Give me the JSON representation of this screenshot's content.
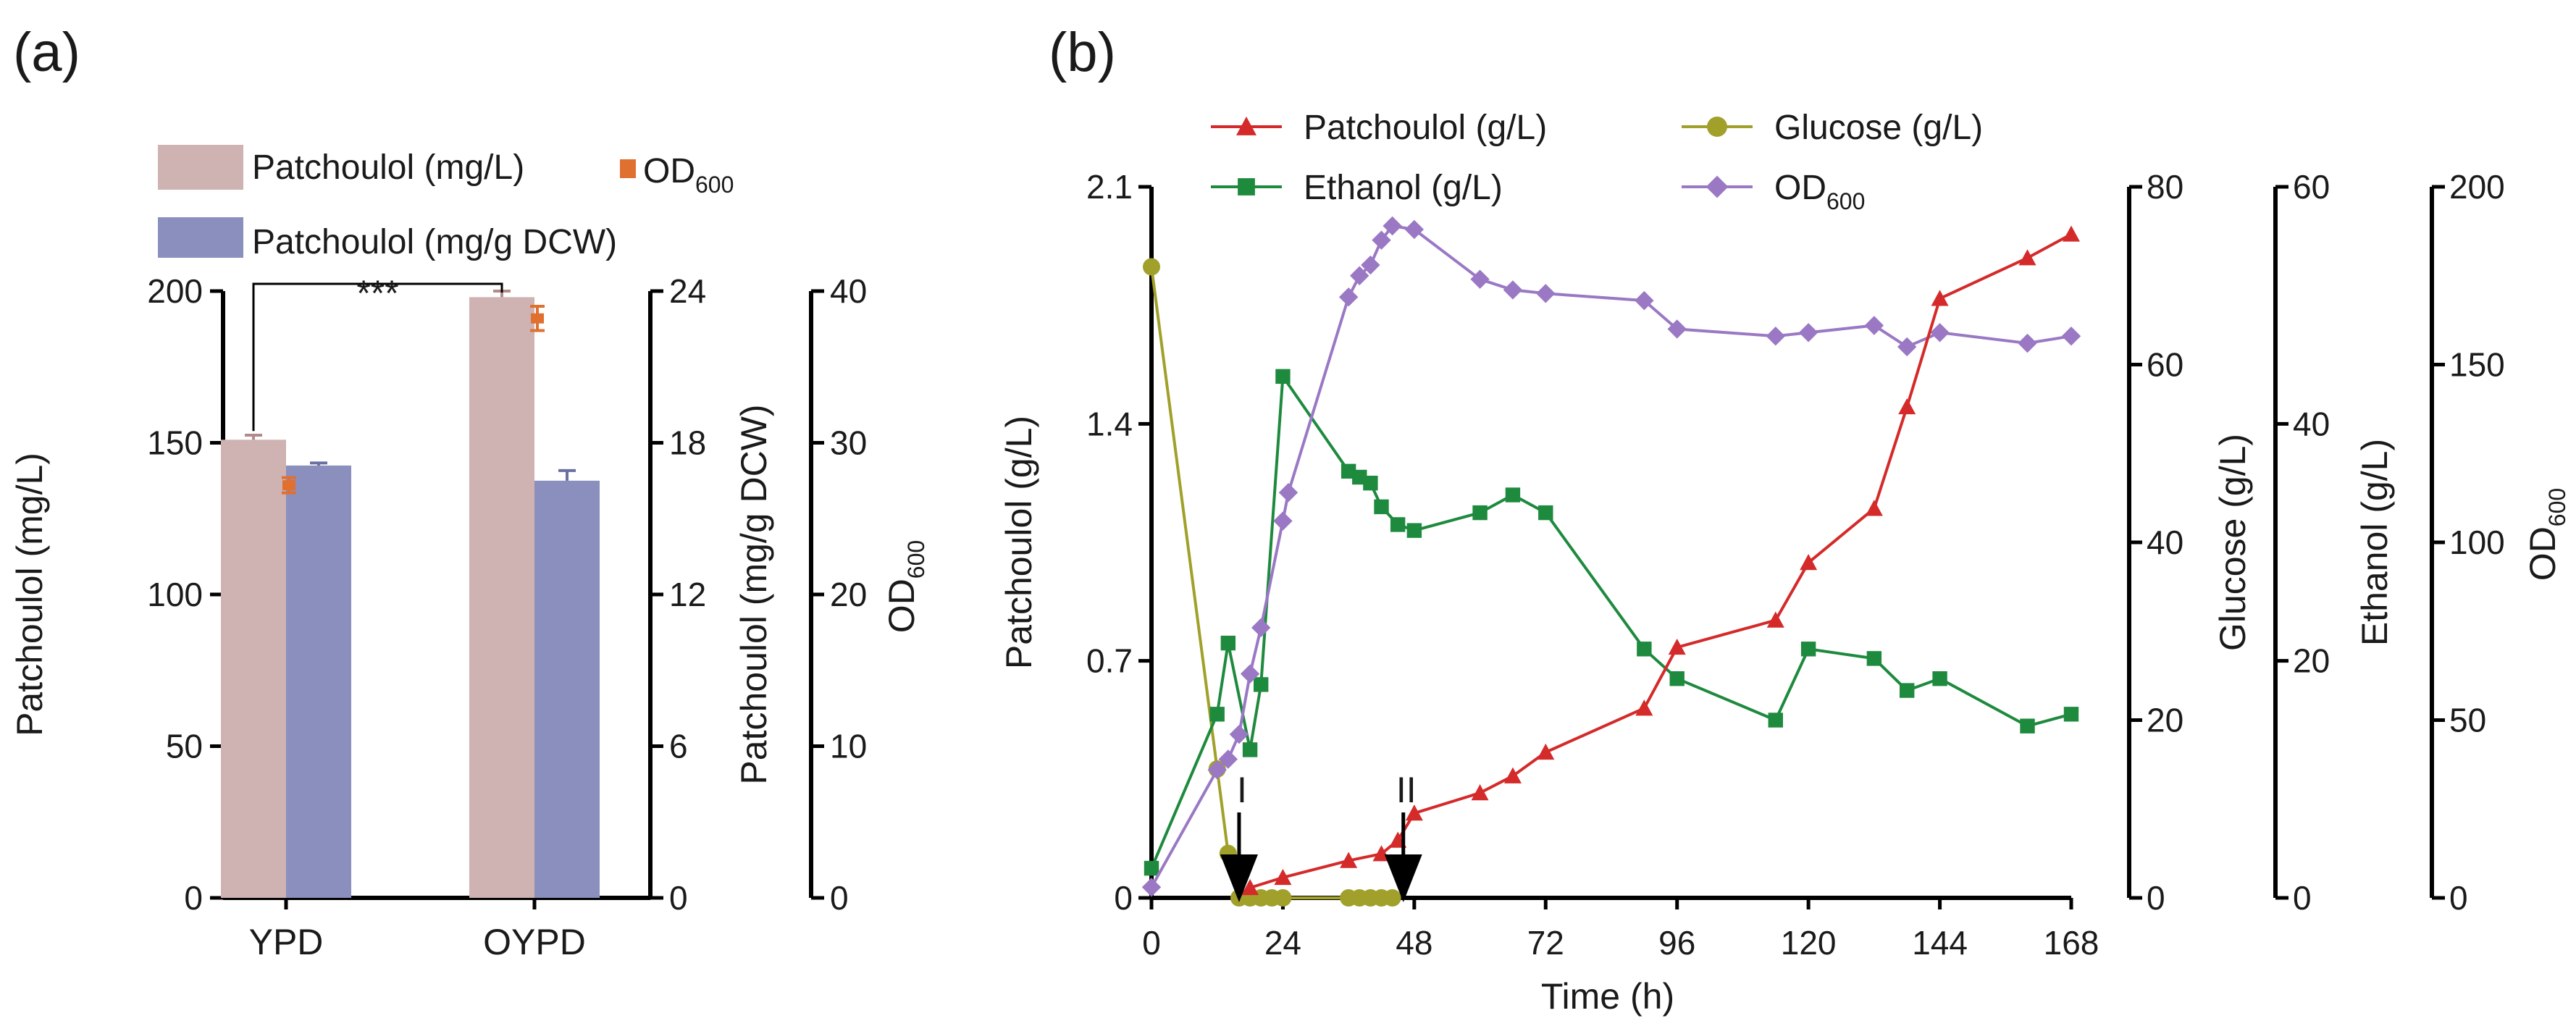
{
  "chart_data": [
    {
      "type": "bar",
      "panel_label": "(a)",
      "categories": [
        "YPD",
        "OYPD"
      ],
      "series": [
        {
          "name": "Patchoulol (mg/L)",
          "axis": "left",
          "color": "#cfb2b2",
          "values": [
            151,
            198
          ],
          "errors": [
            1.5,
            2.0
          ]
        },
        {
          "name": "Patchoulol (mg/g DCW)",
          "axis": "right1",
          "color": "#8a8fbe",
          "values": [
            17.1,
            16.5
          ],
          "errors": [
            0.1,
            0.4
          ]
        },
        {
          "name": "OD600",
          "axis": "right2",
          "color": "#e07030",
          "values": [
            27.2,
            38.2
          ],
          "errors": [
            0.5,
            0.8
          ]
        }
      ],
      "legend": [
        {
          "label": "Patchoulol (mg/L)",
          "sub": "",
          "color": "#cfb2b2"
        },
        {
          "label": "OD",
          "sub": "600",
          "color": "#e07030"
        },
        {
          "label": "Patchoulol (mg/g DCW)",
          "sub": "",
          "color": "#8a8fbe"
        }
      ],
      "significance": "***",
      "axes": {
        "left": {
          "label": "Patchoulol (mg/L)",
          "ylim": [
            0,
            200
          ],
          "ticks": [
            "0",
            "50",
            "100",
            "150",
            "200"
          ]
        },
        "right1": {
          "label": "Patchoulol (mg/g DCW)",
          "ylim": [
            0,
            24
          ],
          "ticks": [
            "0",
            "6",
            "12",
            "18",
            "24"
          ]
        },
        "right2": {
          "label": "OD",
          "label_sub": "600",
          "ylim": [
            0,
            40
          ],
          "ticks": [
            "0",
            "10",
            "20",
            "30",
            "40"
          ]
        }
      }
    },
    {
      "type": "line",
      "panel_label": "(b)",
      "xlabel": "Time (h)",
      "xlim": [
        0,
        168
      ],
      "xticks": [
        "0",
        "24",
        "48",
        "72",
        "96",
        "120",
        "144",
        "168"
      ],
      "series": [
        {
          "name": "Patchoulol (g/L)",
          "axis": "patchoulol",
          "color": "#d42a2a",
          "marker": "triangle",
          "x": [
            18,
            24,
            36,
            42,
            45,
            48,
            60,
            66,
            72,
            90,
            96,
            114,
            120,
            132,
            138,
            144,
            160,
            168
          ],
          "y": [
            0.03,
            0.06,
            0.11,
            0.13,
            0.17,
            0.25,
            0.31,
            0.36,
            0.43,
            0.56,
            0.74,
            0.82,
            0.99,
            1.15,
            1.45,
            1.77,
            1.89,
            1.96
          ]
        },
        {
          "name": "Glucose (g/L)",
          "axis": "glucose",
          "color": "#a0a02a",
          "marker": "circle",
          "x": [
            0,
            12,
            14,
            16,
            18,
            20,
            22,
            24,
            36,
            38,
            40,
            42,
            44
          ],
          "y": [
            71,
            14.5,
            5,
            0,
            0,
            0,
            0,
            0,
            0,
            0,
            0,
            0,
            0
          ]
        },
        {
          "name": "Ethanol (g/L)",
          "axis": "ethanol",
          "color": "#1e8a3e",
          "marker": "square",
          "x": [
            0,
            12,
            14,
            18,
            20,
            24,
            36,
            38,
            40,
            42,
            45,
            48,
            60,
            66,
            72,
            90,
            96,
            114,
            120,
            132,
            138,
            144,
            160,
            168
          ],
          "y": [
            2.5,
            15.5,
            21.5,
            12.5,
            18,
            44,
            36,
            35.5,
            35,
            33,
            31.5,
            31,
            32.5,
            34,
            32.5,
            21,
            18.5,
            15,
            21,
            20.2,
            17.5,
            18.5,
            14.5,
            15.5
          ]
        },
        {
          "name": "OD600",
          "axis": "od",
          "color": "#9a78c4",
          "marker": "diamond",
          "x": [
            0,
            12,
            14,
            16,
            18,
            20,
            24,
            25,
            36,
            38,
            40,
            42,
            44,
            48,
            60,
            66,
            72,
            90,
            96,
            114,
            120,
            132,
            138,
            144,
            160,
            168
          ],
          "y": [
            3,
            36,
            39,
            46,
            63,
            76,
            106,
            114,
            169,
            175,
            178,
            185,
            189,
            188,
            174,
            171,
            170,
            168,
            160,
            158,
            159,
            161,
            155,
            159,
            156,
            158
          ]
        }
      ],
      "legend": [
        {
          "label": "Patchoulol (g/L)",
          "sub": "",
          "color": "#d42a2a",
          "marker": "triangle"
        },
        {
          "label": "Glucose (g/L)",
          "sub": "",
          "color": "#a0a02a",
          "marker": "circle"
        },
        {
          "label": "Ethanol (g/L)",
          "sub": "",
          "color": "#1e8a3e",
          "marker": "square"
        },
        {
          "label": "OD",
          "sub": "600",
          "color": "#9a78c4",
          "marker": "diamond"
        }
      ],
      "annotations": [
        {
          "text": "I",
          "x": 16
        },
        {
          "text": "II",
          "x": 46
        }
      ],
      "axes": {
        "patchoulol": {
          "label": "Patchoulol (g/L)",
          "ylim": [
            0,
            2.1
          ],
          "ticks": [
            "0",
            "0.7",
            "1.4",
            "2.1"
          ]
        },
        "glucose": {
          "label": "Glucose (g/L)",
          "ylim": [
            0,
            80
          ],
          "ticks": [
            "0",
            "20",
            "40",
            "60",
            "80"
          ]
        },
        "ethanol": {
          "label": "Ethanol (g/L)",
          "ylim": [
            0,
            60
          ],
          "ticks": [
            "0",
            "20",
            "40",
            "60"
          ]
        },
        "od": {
          "label": "OD",
          "label_sub": "600",
          "ylim": [
            0,
            200
          ],
          "ticks": [
            "0",
            "50",
            "100",
            "150",
            "200"
          ]
        }
      }
    }
  ]
}
